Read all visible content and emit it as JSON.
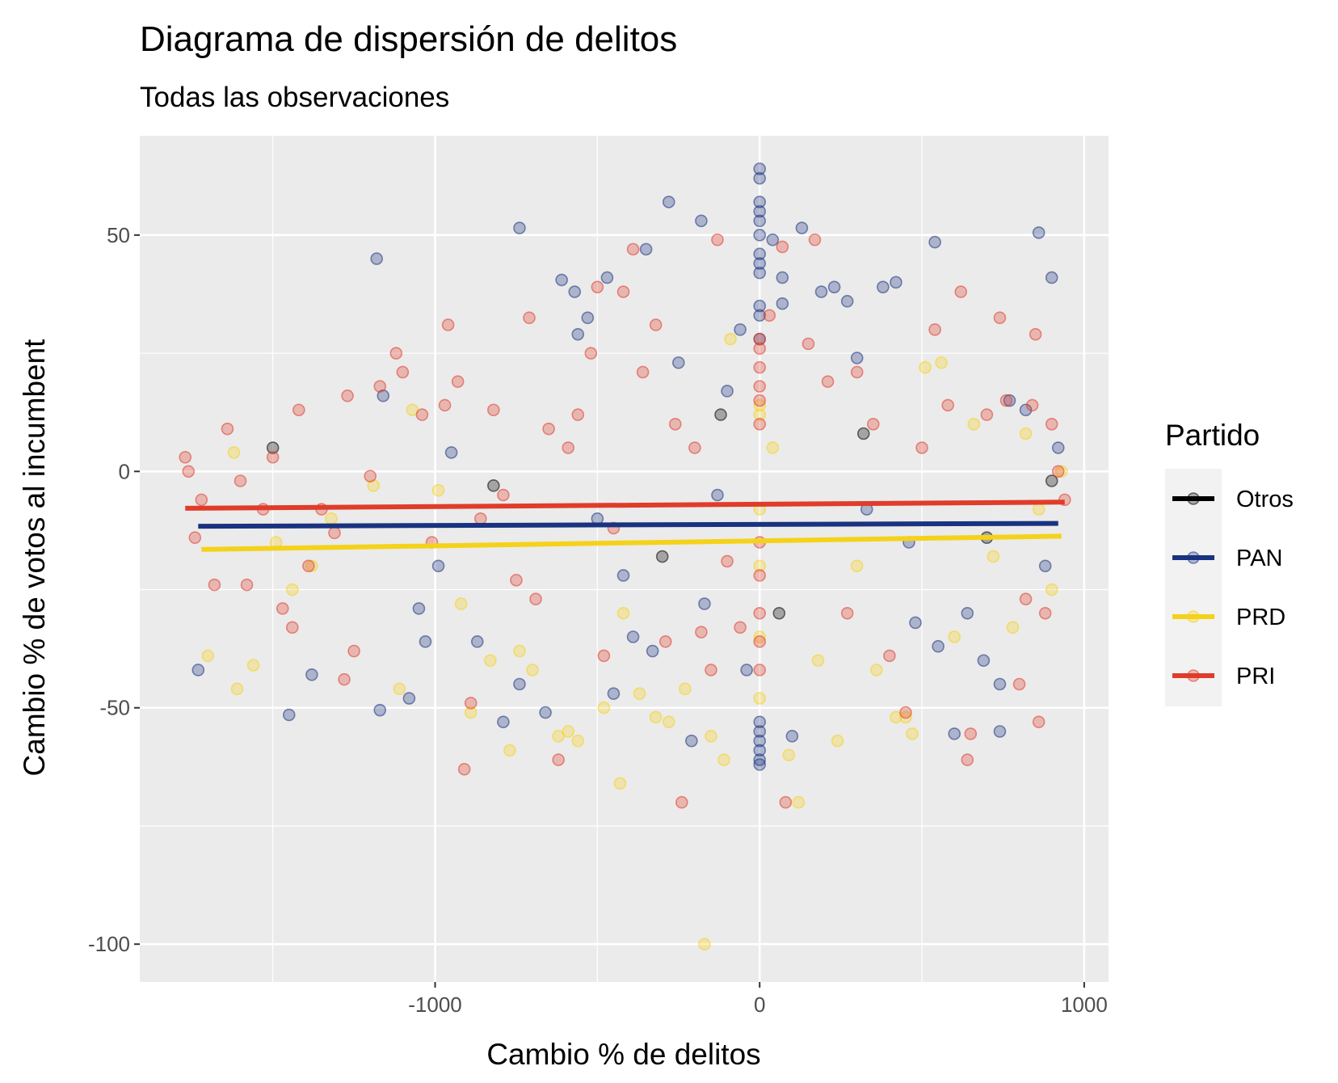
{
  "chart_data": {
    "type": "scatter",
    "title": "Diagrama de dispersión de delitos",
    "subtitle": "Todas las observaciones",
    "xlabel": "Cambio % de delitos",
    "ylabel": "Cambio % de votos al incumbent",
    "xlim": [
      -1910,
      1075
    ],
    "ylim": [
      -108,
      71
    ],
    "x_ticks": [
      -1000,
      0,
      1000
    ],
    "x_tick_labels": [
      "-1000",
      "0",
      "1000"
    ],
    "x_minor": [
      -1500,
      -500,
      500
    ],
    "y_ticks": [
      -100,
      -50,
      0,
      50
    ],
    "y_tick_labels": [
      "-100",
      "-50",
      "0",
      "50"
    ],
    "y_minor": [
      -75,
      -25,
      25
    ],
    "panel_background": "#ebebeb",
    "grid": true,
    "legend": {
      "title": "Partido",
      "position": "right",
      "entries": [
        "Otros",
        "PAN",
        "PRD",
        "PRI"
      ]
    },
    "series": [
      {
        "name": "Otros",
        "color": "#000000",
        "fit": {
          "x": [
            -1750,
            930
          ],
          "y": [
            -7,
            -7
          ]
        },
        "points": [
          [
            -1500,
            5
          ],
          [
            -820,
            -3
          ],
          [
            -300,
            -18
          ],
          [
            -120,
            12
          ],
          [
            60,
            -30
          ],
          [
            320,
            8
          ],
          [
            700,
            -14
          ],
          [
            900,
            -2
          ]
        ]
      },
      {
        "name": "PAN",
        "color": "#1a3380",
        "fit": {
          "x": [
            -1730,
            920
          ],
          "y": [
            -11.6,
            -11.0
          ]
        },
        "points": [
          [
            -1730,
            -42
          ],
          [
            -1450,
            -51.5
          ],
          [
            -1380,
            -43
          ],
          [
            -1180,
            45
          ],
          [
            -1160,
            16
          ],
          [
            -1170,
            -50.5
          ],
          [
            -1080,
            -48
          ],
          [
            -1030,
            -36
          ],
          [
            -1050,
            -29
          ],
          [
            -990,
            -20
          ],
          [
            -950,
            4
          ],
          [
            -870,
            -36
          ],
          [
            -790,
            -53
          ],
          [
            -740,
            51.5
          ],
          [
            -740,
            -45
          ],
          [
            -660,
            -51
          ],
          [
            -610,
            40.5
          ],
          [
            -570,
            38
          ],
          [
            -560,
            29
          ],
          [
            -530,
            32.5
          ],
          [
            -500,
            -10
          ],
          [
            -470,
            41
          ],
          [
            -450,
            -47
          ],
          [
            -420,
            -22
          ],
          [
            -390,
            -35
          ],
          [
            -350,
            47
          ],
          [
            -330,
            -38
          ],
          [
            -280,
            57
          ],
          [
            -250,
            23
          ],
          [
            -210,
            -57
          ],
          [
            -180,
            53
          ],
          [
            -170,
            -28
          ],
          [
            -130,
            -5
          ],
          [
            -100,
            17
          ],
          [
            -60,
            30
          ],
          [
            -40,
            -42
          ],
          [
            0,
            64
          ],
          [
            0,
            62
          ],
          [
            0,
            57
          ],
          [
            0,
            55
          ],
          [
            0,
            53
          ],
          [
            0,
            50
          ],
          [
            0,
            46
          ],
          [
            0,
            44
          ],
          [
            0,
            42
          ],
          [
            0,
            35
          ],
          [
            0,
            33
          ],
          [
            0,
            28
          ],
          [
            0,
            -53
          ],
          [
            0,
            -55
          ],
          [
            0,
            -57
          ],
          [
            0,
            -59
          ],
          [
            0,
            -61
          ],
          [
            0,
            -62
          ],
          [
            40,
            49
          ],
          [
            70,
            41
          ],
          [
            70,
            35.5
          ],
          [
            100,
            -56
          ],
          [
            130,
            51.5
          ],
          [
            190,
            38
          ],
          [
            230,
            39
          ],
          [
            270,
            36
          ],
          [
            300,
            24
          ],
          [
            330,
            -8
          ],
          [
            380,
            39
          ],
          [
            420,
            40
          ],
          [
            460,
            -15
          ],
          [
            480,
            -32
          ],
          [
            540,
            48.5
          ],
          [
            550,
            -37
          ],
          [
            600,
            -55.5
          ],
          [
            640,
            -30
          ],
          [
            690,
            -40
          ],
          [
            740,
            -55
          ],
          [
            740,
            -45
          ],
          [
            770,
            15
          ],
          [
            820,
            13
          ],
          [
            860,
            50.5
          ],
          [
            880,
            -20
          ],
          [
            900,
            41
          ],
          [
            920,
            5
          ]
        ]
      },
      {
        "name": "PRD",
        "color": "#f5d21a",
        "fit": {
          "x": [
            -1720,
            930
          ],
          "y": [
            -16.5,
            -13.7
          ]
        },
        "points": [
          [
            -1700,
            -39
          ],
          [
            -1620,
            4
          ],
          [
            -1610,
            -46
          ],
          [
            -1560,
            -41
          ],
          [
            -1490,
            -15
          ],
          [
            -1440,
            -25
          ],
          [
            -1380,
            -20
          ],
          [
            -1320,
            -10
          ],
          [
            -1190,
            -3
          ],
          [
            -1110,
            -46
          ],
          [
            -1070,
            13
          ],
          [
            -990,
            -4
          ],
          [
            -920,
            -28
          ],
          [
            -890,
            -51
          ],
          [
            -830,
            -40
          ],
          [
            -770,
            -59
          ],
          [
            -740,
            -38
          ],
          [
            -700,
            -42
          ],
          [
            -620,
            -56
          ],
          [
            -590,
            -55
          ],
          [
            -560,
            -57
          ],
          [
            -480,
            -50
          ],
          [
            -430,
            -66
          ],
          [
            -420,
            -30
          ],
          [
            -370,
            -47
          ],
          [
            -320,
            -52
          ],
          [
            -280,
            -53
          ],
          [
            -230,
            -46
          ],
          [
            -170,
            -100
          ],
          [
            -150,
            -56
          ],
          [
            -110,
            -61
          ],
          [
            -90,
            28
          ],
          [
            0,
            14
          ],
          [
            0,
            12
          ],
          [
            0,
            -8
          ],
          [
            0,
            -20
          ],
          [
            0,
            -35
          ],
          [
            0,
            -48
          ],
          [
            40,
            5
          ],
          [
            90,
            -60
          ],
          [
            120,
            -70
          ],
          [
            180,
            -40
          ],
          [
            240,
            -57
          ],
          [
            300,
            -20
          ],
          [
            360,
            -42
          ],
          [
            420,
            -52
          ],
          [
            450,
            -52
          ],
          [
            470,
            -55.5
          ],
          [
            510,
            22
          ],
          [
            560,
            23
          ],
          [
            600,
            -35
          ],
          [
            660,
            10
          ],
          [
            720,
            -18
          ],
          [
            780,
            -33
          ],
          [
            820,
            8
          ],
          [
            860,
            -8
          ],
          [
            900,
            -25
          ],
          [
            930,
            0
          ]
        ]
      },
      {
        "name": "PRI",
        "color": "#e03c2a",
        "fit": {
          "x": [
            -1770,
            940
          ],
          "y": [
            -7.8,
            -6.5
          ]
        },
        "points": [
          [
            -1770,
            3
          ],
          [
            -1760,
            0
          ],
          [
            -1740,
            -14
          ],
          [
            -1720,
            -6
          ],
          [
            -1680,
            -24
          ],
          [
            -1640,
            9
          ],
          [
            -1600,
            -2
          ],
          [
            -1580,
            -24
          ],
          [
            -1530,
            -8
          ],
          [
            -1500,
            3
          ],
          [
            -1470,
            -29
          ],
          [
            -1440,
            -33
          ],
          [
            -1420,
            13
          ],
          [
            -1390,
            -20
          ],
          [
            -1350,
            -8
          ],
          [
            -1310,
            -13
          ],
          [
            -1280,
            -44
          ],
          [
            -1270,
            16
          ],
          [
            -1250,
            -38
          ],
          [
            -1200,
            -1
          ],
          [
            -1170,
            18
          ],
          [
            -1120,
            25
          ],
          [
            -1100,
            21
          ],
          [
            -1040,
            12
          ],
          [
            -1010,
            -15
          ],
          [
            -970,
            14
          ],
          [
            -960,
            31
          ],
          [
            -930,
            19
          ],
          [
            -910,
            -63
          ],
          [
            -890,
            -49
          ],
          [
            -860,
            -10
          ],
          [
            -820,
            13
          ],
          [
            -790,
            -5
          ],
          [
            -750,
            -23
          ],
          [
            -710,
            32.5
          ],
          [
            -690,
            -27
          ],
          [
            -650,
            9
          ],
          [
            -620,
            -61
          ],
          [
            -590,
            5
          ],
          [
            -560,
            12
          ],
          [
            -520,
            25
          ],
          [
            -500,
            39
          ],
          [
            -480,
            -39
          ],
          [
            -450,
            -12
          ],
          [
            -420,
            38
          ],
          [
            -390,
            47
          ],
          [
            -360,
            21
          ],
          [
            -320,
            31
          ],
          [
            -290,
            -36
          ],
          [
            -260,
            10
          ],
          [
            -240,
            -70
          ],
          [
            -200,
            5
          ],
          [
            -180,
            -34
          ],
          [
            -150,
            -42
          ],
          [
            -130,
            49
          ],
          [
            -100,
            -19
          ],
          [
            -60,
            -33
          ],
          [
            0,
            28
          ],
          [
            0,
            26
          ],
          [
            0,
            22
          ],
          [
            0,
            18
          ],
          [
            0,
            15
          ],
          [
            0,
            10
          ],
          [
            0,
            -15
          ],
          [
            0,
            -22
          ],
          [
            0,
            -30
          ],
          [
            0,
            -36
          ],
          [
            0,
            -42
          ],
          [
            30,
            33
          ],
          [
            70,
            47.5
          ],
          [
            80,
            -70
          ],
          [
            150,
            27
          ],
          [
            170,
            49
          ],
          [
            210,
            19
          ],
          [
            270,
            -30
          ],
          [
            300,
            21
          ],
          [
            350,
            10
          ],
          [
            400,
            -39
          ],
          [
            450,
            -51
          ],
          [
            500,
            5
          ],
          [
            540,
            30
          ],
          [
            580,
            14
          ],
          [
            620,
            38
          ],
          [
            640,
            -61
          ],
          [
            650,
            -55.5
          ],
          [
            700,
            12
          ],
          [
            740,
            32.5
          ],
          [
            760,
            15
          ],
          [
            800,
            -45
          ],
          [
            820,
            -27
          ],
          [
            840,
            14
          ],
          [
            850,
            29
          ],
          [
            860,
            -53
          ],
          [
            880,
            -30
          ],
          [
            900,
            10
          ],
          [
            920,
            0
          ],
          [
            940,
            -6
          ]
        ]
      }
    ]
  }
}
